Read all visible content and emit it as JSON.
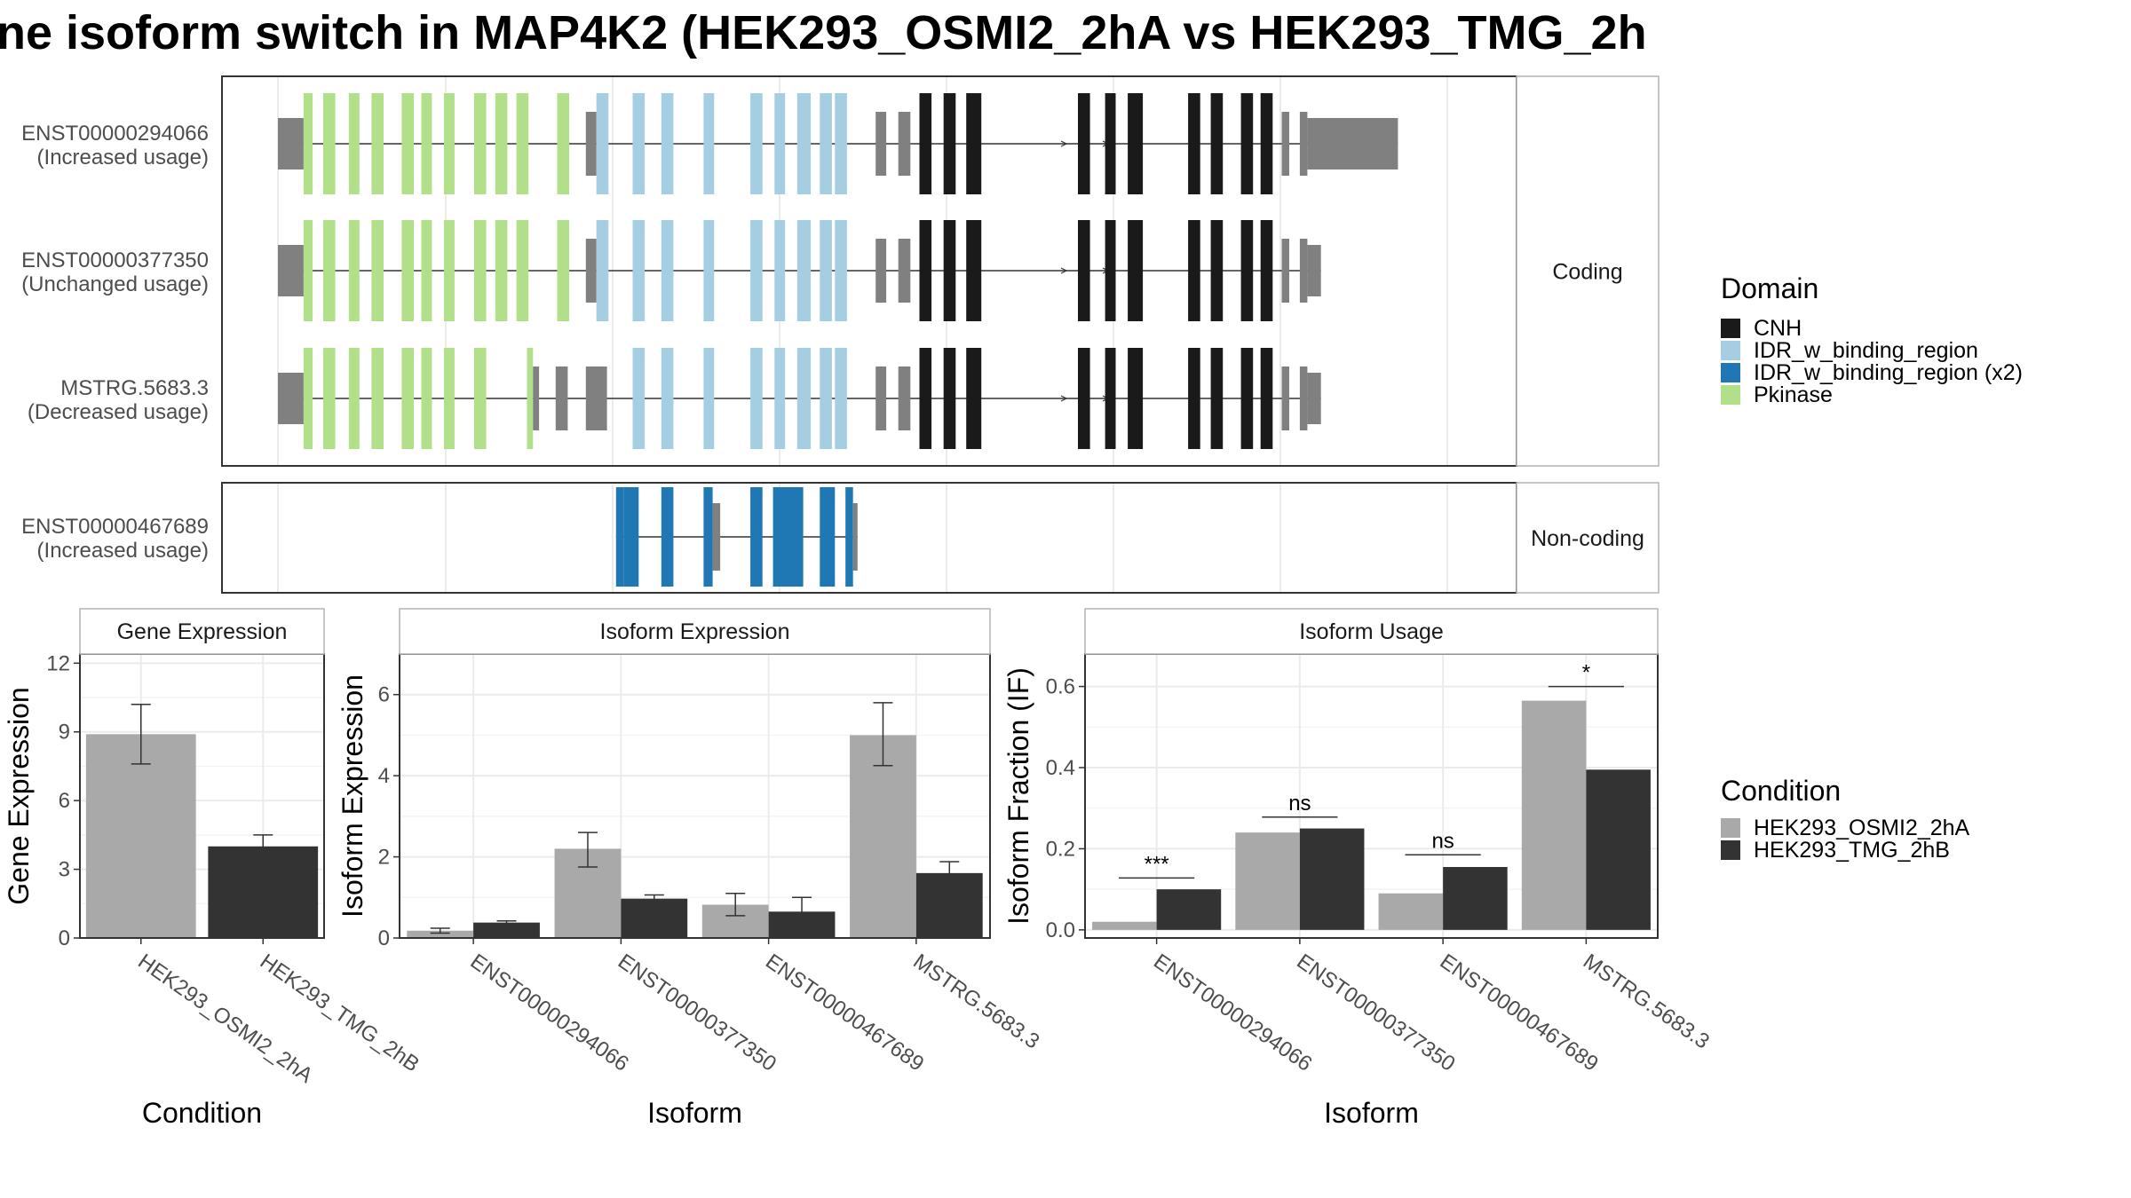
{
  "title": "ne isoform switch in MAP4K2 (HEK293_OSMI2_2hA vs HEK293_TMG_2h",
  "domain_colors": {
    "CNH": "#1a1a1a",
    "IDR_w_binding_region": "#a6cee3",
    "IDR_w_binding_region (x2)": "#1f78b4",
    "Pkinase": "#b2df8a",
    "utr": "#808080"
  },
  "condition_colors": {
    "HEK293_OSMI2_2hA": "#a9a9a9",
    "HEK293_TMG_2hB": "#333333"
  },
  "isoform_panels": [
    {
      "label": "Coding",
      "transcripts": [
        {
          "id": "ENST00000294066",
          "note": "(Increased usage)",
          "exons": [
            {
              "start": 0.0,
              "end": 1.7,
              "domain": "utr"
            },
            {
              "start": 1.7,
              "end": 2.3,
              "domain": "Pkinase"
            },
            {
              "start": 3.0,
              "end": 3.8,
              "domain": "Pkinase"
            },
            {
              "start": 4.7,
              "end": 5.4,
              "domain": "Pkinase"
            },
            {
              "start": 6.2,
              "end": 7.0,
              "domain": "Pkinase"
            },
            {
              "start": 8.2,
              "end": 9.0,
              "domain": "Pkinase"
            },
            {
              "start": 9.5,
              "end": 10.2,
              "domain": "Pkinase"
            },
            {
              "start": 11.0,
              "end": 11.7,
              "domain": "Pkinase"
            },
            {
              "start": 13.0,
              "end": 13.8,
              "domain": "Pkinase"
            },
            {
              "start": 14.4,
              "end": 15.2,
              "domain": "Pkinase"
            },
            {
              "start": 15.8,
              "end": 16.6,
              "domain": "Pkinase"
            },
            {
              "start": 18.5,
              "end": 19.3,
              "domain": "Pkinase"
            },
            {
              "start": 20.4,
              "end": 21.1,
              "domain": "utr"
            },
            {
              "start": 21.1,
              "end": 21.9,
              "domain": "IDR_w_binding_region"
            },
            {
              "start": 23.5,
              "end": 24.3,
              "domain": "IDR_w_binding_region"
            },
            {
              "start": 25.4,
              "end": 26.2,
              "domain": "IDR_w_binding_region"
            },
            {
              "start": 28.2,
              "end": 28.9,
              "domain": "IDR_w_binding_region"
            },
            {
              "start": 31.3,
              "end": 32.1,
              "domain": "IDR_w_binding_region"
            },
            {
              "start": 32.9,
              "end": 33.6,
              "domain": "IDR_w_binding_region"
            },
            {
              "start": 34.4,
              "end": 35.3,
              "domain": "IDR_w_binding_region"
            },
            {
              "start": 35.9,
              "end": 36.7,
              "domain": "IDR_w_binding_region"
            },
            {
              "start": 36.9,
              "end": 37.7,
              "domain": "IDR_w_binding_region"
            },
            {
              "start": 39.6,
              "end": 40.3,
              "domain": "utr"
            },
            {
              "start": 41.1,
              "end": 41.9,
              "domain": "utr"
            },
            {
              "start": 42.5,
              "end": 43.3,
              "domain": "CNH"
            },
            {
              "start": 44.1,
              "end": 44.9,
              "domain": "CNH"
            },
            {
              "start": 45.6,
              "end": 46.6,
              "domain": "CNH"
            },
            {
              "start": 53.0,
              "end": 53.8,
              "domain": "CNH"
            },
            {
              "start": 54.8,
              "end": 55.5,
              "domain": "CNH"
            },
            {
              "start": 56.3,
              "end": 57.3,
              "domain": "CNH"
            },
            {
              "start": 60.3,
              "end": 61.1,
              "domain": "CNH"
            },
            {
              "start": 61.8,
              "end": 62.6,
              "domain": "CNH"
            },
            {
              "start": 63.8,
              "end": 64.6,
              "domain": "CNH"
            },
            {
              "start": 65.1,
              "end": 65.9,
              "domain": "CNH"
            },
            {
              "start": 66.5,
              "end": 67.0,
              "domain": "utr"
            },
            {
              "start": 67.7,
              "end": 68.2,
              "domain": "utr"
            },
            {
              "start": 68.2,
              "end": 74.2,
              "domain": "utr"
            }
          ]
        },
        {
          "id": "ENST00000377350",
          "note": "(Unchanged usage)",
          "exons": [
            {
              "start": 0.0,
              "end": 1.7,
              "domain": "utr"
            },
            {
              "start": 1.7,
              "end": 2.3,
              "domain": "Pkinase"
            },
            {
              "start": 3.0,
              "end": 3.8,
              "domain": "Pkinase"
            },
            {
              "start": 4.7,
              "end": 5.4,
              "domain": "Pkinase"
            },
            {
              "start": 6.2,
              "end": 7.0,
              "domain": "Pkinase"
            },
            {
              "start": 8.2,
              "end": 9.0,
              "domain": "Pkinase"
            },
            {
              "start": 9.5,
              "end": 10.2,
              "domain": "Pkinase"
            },
            {
              "start": 11.0,
              "end": 11.7,
              "domain": "Pkinase"
            },
            {
              "start": 13.0,
              "end": 13.8,
              "domain": "Pkinase"
            },
            {
              "start": 14.4,
              "end": 15.2,
              "domain": "Pkinase"
            },
            {
              "start": 15.8,
              "end": 16.6,
              "domain": "Pkinase"
            },
            {
              "start": 18.5,
              "end": 19.3,
              "domain": "Pkinase"
            },
            {
              "start": 20.4,
              "end": 21.1,
              "domain": "utr"
            },
            {
              "start": 21.1,
              "end": 21.9,
              "domain": "IDR_w_binding_region"
            },
            {
              "start": 23.5,
              "end": 24.3,
              "domain": "IDR_w_binding_region"
            },
            {
              "start": 25.4,
              "end": 26.2,
              "domain": "IDR_w_binding_region"
            },
            {
              "start": 28.2,
              "end": 28.9,
              "domain": "IDR_w_binding_region"
            },
            {
              "start": 31.3,
              "end": 32.1,
              "domain": "IDR_w_binding_region"
            },
            {
              "start": 32.9,
              "end": 33.6,
              "domain": "IDR_w_binding_region"
            },
            {
              "start": 34.4,
              "end": 35.3,
              "domain": "IDR_w_binding_region"
            },
            {
              "start": 35.9,
              "end": 36.7,
              "domain": "IDR_w_binding_region"
            },
            {
              "start": 36.9,
              "end": 37.7,
              "domain": "IDR_w_binding_region"
            },
            {
              "start": 39.6,
              "end": 40.3,
              "domain": "utr"
            },
            {
              "start": 41.1,
              "end": 41.9,
              "domain": "utr"
            },
            {
              "start": 42.5,
              "end": 43.3,
              "domain": "CNH"
            },
            {
              "start": 44.1,
              "end": 44.9,
              "domain": "CNH"
            },
            {
              "start": 45.6,
              "end": 46.6,
              "domain": "CNH"
            },
            {
              "start": 53.0,
              "end": 53.8,
              "domain": "CNH"
            },
            {
              "start": 54.8,
              "end": 55.5,
              "domain": "CNH"
            },
            {
              "start": 56.3,
              "end": 57.3,
              "domain": "CNH"
            },
            {
              "start": 60.3,
              "end": 61.1,
              "domain": "CNH"
            },
            {
              "start": 61.8,
              "end": 62.6,
              "domain": "CNH"
            },
            {
              "start": 63.8,
              "end": 64.6,
              "domain": "CNH"
            },
            {
              "start": 65.1,
              "end": 65.9,
              "domain": "CNH"
            },
            {
              "start": 66.5,
              "end": 67.0,
              "domain": "utr"
            },
            {
              "start": 67.7,
              "end": 68.2,
              "domain": "utr"
            },
            {
              "start": 68.2,
              "end": 69.1,
              "domain": "utr"
            }
          ]
        },
        {
          "id": "MSTRG.5683.3",
          "note": "(Decreased usage)",
          "exons": [
            {
              "start": 0.0,
              "end": 1.7,
              "domain": "utr"
            },
            {
              "start": 1.7,
              "end": 2.3,
              "domain": "Pkinase"
            },
            {
              "start": 3.0,
              "end": 3.8,
              "domain": "Pkinase"
            },
            {
              "start": 4.7,
              "end": 5.4,
              "domain": "Pkinase"
            },
            {
              "start": 6.2,
              "end": 7.0,
              "domain": "Pkinase"
            },
            {
              "start": 8.2,
              "end": 9.0,
              "domain": "Pkinase"
            },
            {
              "start": 9.5,
              "end": 10.2,
              "domain": "Pkinase"
            },
            {
              "start": 11.0,
              "end": 11.7,
              "domain": "Pkinase"
            },
            {
              "start": 13.0,
              "end": 13.8,
              "domain": "Pkinase"
            },
            {
              "start": 16.5,
              "end": 16.9,
              "domain": "Pkinase"
            },
            {
              "start": 16.9,
              "end": 17.3,
              "domain": "utr"
            },
            {
              "start": 18.4,
              "end": 19.2,
              "domain": "utr"
            },
            {
              "start": 20.4,
              "end": 21.8,
              "domain": "utr"
            },
            {
              "start": 23.5,
              "end": 24.3,
              "domain": "IDR_w_binding_region"
            },
            {
              "start": 25.4,
              "end": 26.2,
              "domain": "IDR_w_binding_region"
            },
            {
              "start": 28.2,
              "end": 28.9,
              "domain": "IDR_w_binding_region"
            },
            {
              "start": 31.3,
              "end": 32.1,
              "domain": "IDR_w_binding_region"
            },
            {
              "start": 32.9,
              "end": 33.6,
              "domain": "IDR_w_binding_region"
            },
            {
              "start": 34.4,
              "end": 35.3,
              "domain": "IDR_w_binding_region"
            },
            {
              "start": 35.9,
              "end": 36.7,
              "domain": "IDR_w_binding_region"
            },
            {
              "start": 36.9,
              "end": 37.7,
              "domain": "IDR_w_binding_region"
            },
            {
              "start": 39.6,
              "end": 40.3,
              "domain": "utr"
            },
            {
              "start": 41.1,
              "end": 41.9,
              "domain": "utr"
            },
            {
              "start": 42.5,
              "end": 43.3,
              "domain": "CNH"
            },
            {
              "start": 44.1,
              "end": 44.9,
              "domain": "CNH"
            },
            {
              "start": 45.6,
              "end": 46.6,
              "domain": "CNH"
            },
            {
              "start": 53.0,
              "end": 53.8,
              "domain": "CNH"
            },
            {
              "start": 54.8,
              "end": 55.5,
              "domain": "CNH"
            },
            {
              "start": 56.3,
              "end": 57.3,
              "domain": "CNH"
            },
            {
              "start": 60.3,
              "end": 61.1,
              "domain": "CNH"
            },
            {
              "start": 61.8,
              "end": 62.6,
              "domain": "CNH"
            },
            {
              "start": 63.8,
              "end": 64.6,
              "domain": "CNH"
            },
            {
              "start": 65.1,
              "end": 65.9,
              "domain": "CNH"
            },
            {
              "start": 66.5,
              "end": 67.0,
              "domain": "utr"
            },
            {
              "start": 67.7,
              "end": 68.2,
              "domain": "utr"
            },
            {
              "start": 68.2,
              "end": 69.1,
              "domain": "utr"
            }
          ]
        }
      ]
    },
    {
      "label": "Non-coding",
      "transcripts": [
        {
          "id": "ENST00000467689",
          "note": "(Increased usage)",
          "exons": [
            {
              "start": 22.4,
              "end": 22.9,
              "domain": "IDR_w_binding_region (x2)"
            },
            {
              "start": 22.9,
              "end": 23.9,
              "domain": "IDR_w_binding_region (x2)"
            },
            {
              "start": 25.4,
              "end": 26.2,
              "domain": "IDR_w_binding_region (x2)"
            },
            {
              "start": 28.2,
              "end": 28.8,
              "domain": "IDR_w_binding_region (x2)"
            },
            {
              "start": 28.8,
              "end": 29.3,
              "domain": "utr"
            },
            {
              "start": 31.3,
              "end": 32.1,
              "domain": "IDR_w_binding_region (x2)"
            },
            {
              "start": 32.8,
              "end": 34.8,
              "domain": "IDR_w_binding_region (x2)"
            },
            {
              "start": 35.9,
              "end": 36.9,
              "domain": "IDR_w_binding_region (x2)"
            },
            {
              "start": 37.6,
              "end": 38.1,
              "domain": "IDR_w_binding_region (x2)"
            },
            {
              "start": 38.1,
              "end": 38.4,
              "domain": "utr"
            }
          ]
        }
      ]
    }
  ],
  "legend_domain": {
    "title": "Domain",
    "items": [
      "CNH",
      "IDR_w_binding_region",
      "IDR_w_binding_region (x2)",
      "Pkinase"
    ]
  },
  "legend_condition": {
    "title": "Condition",
    "items": [
      "HEK293_OSMI2_2hA",
      "HEK293_TMG_2hB"
    ]
  },
  "chart_data": [
    {
      "type": "bar",
      "title": "Gene Expression",
      "xlabel": "Condition",
      "ylabel": "Gene Expression",
      "categories": [
        "HEK293_OSMI2_2hA",
        "HEK293_TMG_2hB"
      ],
      "values": [
        8.9,
        4.0
      ],
      "error_low": [
        7.6,
        3.5
      ],
      "error_high": [
        10.2,
        4.5
      ],
      "ylim": [
        0,
        12.4
      ],
      "yticks": [
        0,
        3,
        6,
        9,
        12
      ],
      "yticklabels": [
        "0",
        "3",
        "6",
        "9",
        "12"
      ]
    },
    {
      "type": "bar",
      "title": "Isoform Expression",
      "xlabel": "Isoform",
      "ylabel": "Isoform Expression",
      "categories": [
        "ENST00000294066",
        "ENST00000377350",
        "ENST00000467689",
        "MSTRG.5683.3"
      ],
      "series": [
        {
          "name": "HEK293_OSMI2_2hA",
          "values": [
            0.18,
            2.2,
            0.82,
            5.0
          ],
          "error_low": [
            0.12,
            1.75,
            0.55,
            4.25
          ],
          "error_high": [
            0.24,
            2.6,
            1.1,
            5.8
          ]
        },
        {
          "name": "HEK293_TMG_2hB",
          "values": [
            0.38,
            0.97,
            0.65,
            1.6
          ],
          "error_low": [
            0.35,
            0.88,
            0.28,
            1.3
          ],
          "error_high": [
            0.42,
            1.06,
            1.0,
            1.88
          ]
        }
      ],
      "ylim": [
        0,
        7.0
      ],
      "yticks": [
        0,
        2,
        4,
        6
      ],
      "yticklabels": [
        "0",
        "2",
        "4",
        "6"
      ]
    },
    {
      "type": "bar",
      "title": "Isoform Usage",
      "xlabel": "Isoform",
      "ylabel": "Isoform Fraction (IF)",
      "categories": [
        "ENST00000294066",
        "ENST00000377350",
        "ENST00000467689",
        "MSTRG.5683.3"
      ],
      "series": [
        {
          "name": "HEK293_OSMI2_2hA",
          "values": [
            0.02,
            0.24,
            0.09,
            0.565
          ]
        },
        {
          "name": "HEK293_TMG_2hB",
          "values": [
            0.1,
            0.25,
            0.155,
            0.395
          ]
        }
      ],
      "significance": [
        "***",
        "ns",
        "ns",
        "*"
      ],
      "significance_y": [
        0.128,
        0.278,
        0.185,
        0.6
      ],
      "ylim": [
        -0.02,
        0.68
      ],
      "yticks": [
        0,
        0.2,
        0.4,
        0.6
      ],
      "yticklabels": [
        "0.0",
        "0.2",
        "0.4",
        "0.6"
      ]
    }
  ]
}
